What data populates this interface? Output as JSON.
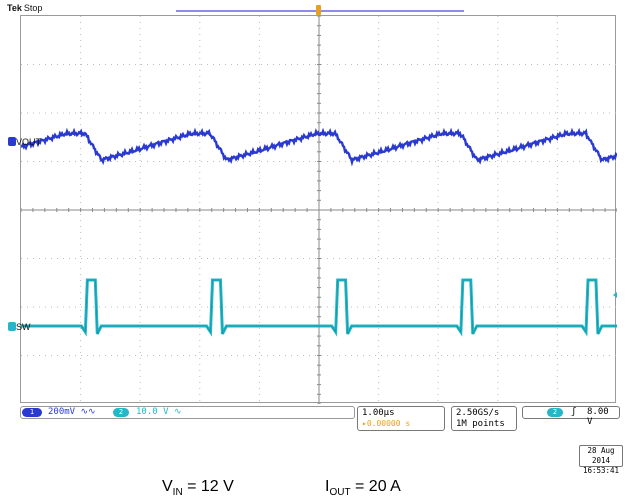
{
  "header": {
    "brand": "Tek",
    "status": "Stop"
  },
  "channels": [
    {
      "id": "1",
      "label": "VOUT",
      "color": "#2a3ad0"
    },
    {
      "id": "2",
      "label": "SW",
      "color": "#21b8c8"
    }
  ],
  "settings": {
    "ch1_scale": "200mV",
    "ch1_coupling": "∿∿",
    "ch2_scale": "10.0 V",
    "ch2_coupling": "∿",
    "timebase": "1.00µs",
    "delay": "▸0.00000 s",
    "sample_rate": "2.50GS/s",
    "record_length": "1M points",
    "trigger_channel": "2",
    "trigger_slope": "ʃ",
    "trigger_level": "8.00 V"
  },
  "datetime": {
    "date": "28 Aug 2014",
    "time": "16:53:41"
  },
  "caption": {
    "vin_main": "V",
    "vin_sub": "IN",
    "vin_value": " = 12 V",
    "iout_main": "I",
    "iout_sub": "OUT",
    "iout_value": " = 20 A"
  },
  "colors": {
    "ch1": "#2a3ad0",
    "ch2": "#21b8c8",
    "trigger": "#e8a020"
  },
  "waveform": {
    "switching_period_divs": 2.1,
    "sw_pulse_edges_divs": [
      1.08,
      3.18,
      5.28,
      7.38,
      9.48
    ],
    "sw_pulse_width_divs": 0.2
  }
}
